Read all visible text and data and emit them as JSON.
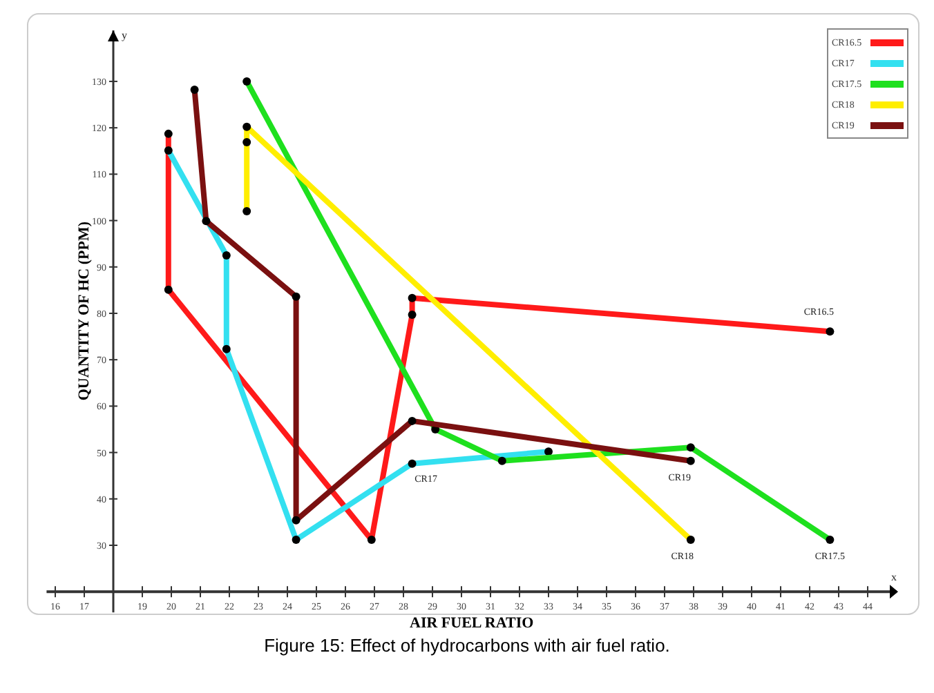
{
  "chart_data": {
    "type": "line",
    "title": "Figure 15: Effect of hydrocarbons with air fuel ratio.",
    "xlabel": "AIR FUEL RATIO",
    "ylabel": "QUANTITY OF HC (PPM)",
    "xlim": [
      15.7,
      45
    ],
    "ylim": [
      20,
      141
    ],
    "xticks": [
      16,
      17,
      {
        "value": 18,
        "label": null
      },
      19,
      20,
      21,
      22,
      23,
      24,
      25,
      26,
      27,
      28,
      29,
      30,
      31,
      32,
      33,
      34,
      35,
      36,
      37,
      38,
      39,
      40,
      41,
      42,
      43,
      44
    ],
    "yticks": [
      30,
      40,
      50,
      60,
      70,
      80,
      90,
      100,
      110,
      120,
      130
    ],
    "grid": false,
    "legend": "top right",
    "marker": "circle",
    "line_style": "solid",
    "series": [
      {
        "name": "CR16.5",
        "color": "#ff1a1a",
        "x": [
          19.9,
          19.9,
          26.9,
          28.3,
          28.3,
          42.7
        ],
        "values": [
          118.7,
          85.1,
          31.2,
          79.7,
          83.3,
          76.1
        ]
      },
      {
        "name": "CR17",
        "color": "#33e0f0",
        "x": [
          19.9,
          21.9,
          21.9,
          24.3,
          28.3,
          33
        ],
        "values": [
          115.1,
          92.5,
          72.3,
          31.2,
          47.6,
          50.2
        ]
      },
      {
        "name": "CR17.5",
        "color": "#1ee01e",
        "x": [
          22.6,
          29.1,
          31.4,
          37.9,
          42.7
        ],
        "values": [
          130,
          55,
          48.2,
          51.1,
          31.2
        ]
      },
      {
        "name": "CR18",
        "color": "#ffee00",
        "x": [
          22.6,
          22.6,
          22.6,
          37.9
        ],
        "values": [
          102,
          116.9,
          120.2,
          31.2
        ]
      },
      {
        "name": "CR19",
        "color": "#7a1010",
        "x": [
          20.8,
          21.2,
          24.3,
          24.3,
          28.3,
          37.9
        ],
        "values": [
          128.2,
          99.9,
          83.6,
          35.4,
          56.8,
          48.2
        ]
      }
    ],
    "annotations": [
      "y",
      "x"
    ]
  }
}
